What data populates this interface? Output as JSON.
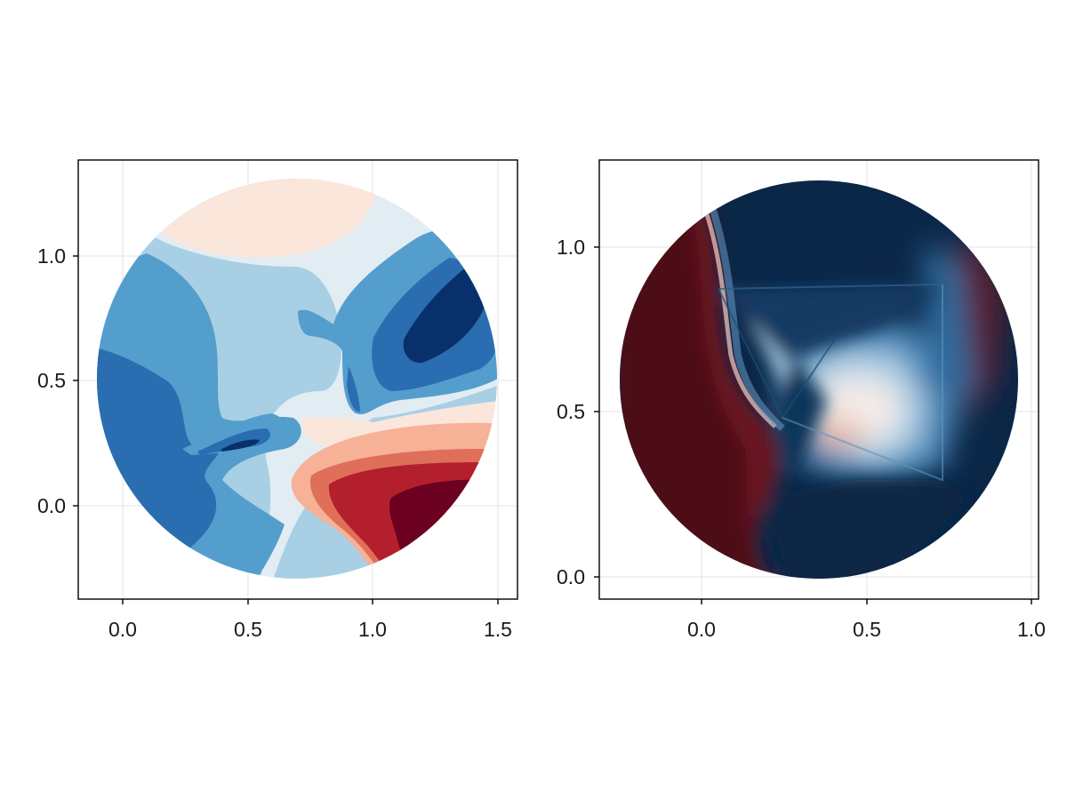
{
  "chart_data": [
    {
      "type": "contour",
      "title": "",
      "xlabel": "",
      "ylabel": "",
      "xlim": [
        -0.18,
        1.58
      ],
      "ylim": [
        -0.38,
        1.38
      ],
      "xticks": [
        0.0,
        0.5,
        1.0,
        1.5
      ],
      "xtick_labels": [
        "0.0",
        "0.5",
        "1.0",
        "1.5"
      ],
      "yticks": [
        0.0,
        0.5,
        1.0
      ],
      "ytick_labels": [
        "0.0",
        "0.5",
        "1.0"
      ],
      "grid": true,
      "domain": {
        "shape": "disk",
        "center": [
          0.68,
          0.49
        ],
        "radius": 0.8
      },
      "colormap": "RdBu, blue = low, red = high",
      "levels": 10,
      "level_colors": [
        "#08306b",
        "#2a6db1",
        "#549ecd",
        "#a9cfe5",
        "#e2ecf3",
        "#fbe6dc",
        "#f6b196",
        "#df6f59",
        "#b41f2d",
        "#6b0020"
      ]
    },
    {
      "type": "surface",
      "title": "",
      "xlabel": "",
      "ylabel": "",
      "xlim": [
        -0.31,
        1.02
      ],
      "ylim": [
        -0.065,
        1.265
      ],
      "xticks": [
        0.0,
        0.5,
        1.0
      ],
      "xtick_labels": [
        "0.0",
        "0.5",
        "1.0"
      ],
      "yticks": [
        0.0,
        0.5,
        1.0
      ],
      "ytick_labels": [
        "0.0",
        "0.5",
        "1.0"
      ],
      "grid": true,
      "domain": {
        "shape": "disk",
        "center": [
          0.36,
          0.6
        ],
        "radius": 0.6
      },
      "colormap": "RdBu, blue = low, red = high",
      "shading": "interpolated over a triangulated mesh"
    }
  ]
}
